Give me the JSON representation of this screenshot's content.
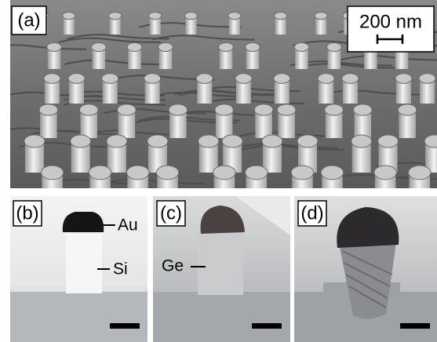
{
  "panels": [
    {
      "label": "(a)",
      "scale_bar": "200 nm"
    },
    {
      "label": "(b)",
      "annotations": [
        "Au",
        "Si"
      ]
    },
    {
      "label": "(c)",
      "annotations": [
        "Ge"
      ]
    },
    {
      "label": "(d)"
    }
  ]
}
